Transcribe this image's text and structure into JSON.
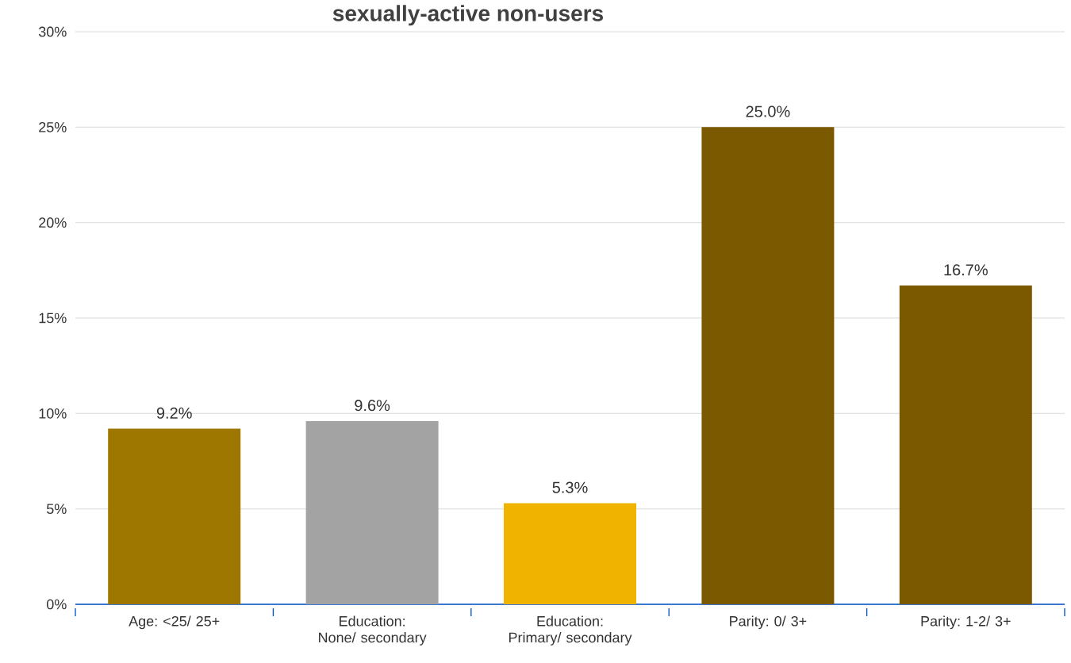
{
  "chart_data": {
    "type": "bar",
    "title": "sexually-active non-users",
    "categories": [
      "Age: <25/ 25+",
      "Education: None/ secondary",
      "Education: Primary/ secondary",
      "Parity: 0/ 3+",
      "Parity: 1-2/ 3+"
    ],
    "values": [
      9.2,
      9.6,
      5.3,
      25.0,
      16.7
    ],
    "colors": [
      "#9e7700",
      "#a3a3a3",
      "#f0b400",
      "#7a5900",
      "#7a5900"
    ],
    "value_labels": [
      "9.2%",
      "9.6%",
      "5.3%",
      "25.0%",
      "16.7%"
    ],
    "ylim": [
      0,
      30
    ],
    "yticks": [
      {
        "value": 0,
        "label": "0%"
      },
      {
        "value": 5,
        "label": "5%"
      },
      {
        "value": 10,
        "label": "10%"
      },
      {
        "value": 15,
        "label": "15%"
      },
      {
        "value": 20,
        "label": "20%"
      },
      {
        "value": 25,
        "label": "25%"
      },
      {
        "value": 30,
        "label": "30%"
      }
    ],
    "grid": "y"
  }
}
